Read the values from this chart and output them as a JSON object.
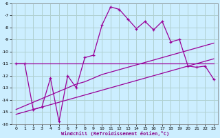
{
  "xlabel": "Windchill (Refroidissement éolien,°C)",
  "background_color": "#cceeff",
  "grid_color": "#b0d0d0",
  "line_color": "#990099",
  "x_data": [
    0,
    1,
    2,
    3,
    4,
    5,
    6,
    7,
    8,
    9,
    10,
    11,
    12,
    13,
    14,
    15,
    16,
    17,
    18,
    19,
    20,
    21,
    22,
    23
  ],
  "y_main": [
    -11.0,
    -11.0,
    -14.8,
    -14.6,
    -12.2,
    -15.8,
    -12.0,
    -13.0,
    -10.5,
    -10.3,
    -7.8,
    -6.3,
    -6.5,
    -7.3,
    -8.1,
    -7.5,
    -8.2,
    -7.5,
    -9.2,
    -9.0,
    -11.2,
    -11.3,
    -11.2,
    -12.3
  ],
  "y_line1": [
    -11.0,
    -11.0,
    -11.0,
    -11.0,
    -11.0,
    -11.0,
    -11.0,
    -11.0,
    -11.0,
    -11.0,
    -11.0,
    -11.0,
    -11.0,
    -11.0,
    -11.0,
    -11.0,
    -11.0,
    -11.0,
    -11.0,
    -11.0,
    -11.0,
    -11.0,
    -11.0,
    -11.0
  ],
  "y_line2": [
    -14.8,
    -14.5,
    -14.2,
    -13.9,
    -13.6,
    -13.3,
    -13.0,
    -12.7,
    -12.5,
    -12.2,
    -11.9,
    -11.7,
    -11.5,
    -11.3,
    -11.1,
    -10.9,
    -10.7,
    -10.5,
    -10.3,
    -10.1,
    -9.9,
    -9.7,
    -9.5,
    -9.3
  ],
  "y_line3": [
    -15.2,
    -15.0,
    -14.8,
    -14.6,
    -14.4,
    -14.2,
    -14.0,
    -13.8,
    -13.6,
    -13.4,
    -13.2,
    -13.0,
    -12.8,
    -12.6,
    -12.4,
    -12.2,
    -12.0,
    -11.8,
    -11.6,
    -11.4,
    -11.2,
    -11.0,
    -10.8,
    -10.6
  ],
  "ylim": [
    -16,
    -6
  ],
  "xlim": [
    -0.5,
    23.5
  ],
  "yticks": [
    -16,
    -15,
    -14,
    -13,
    -12,
    -11,
    -10,
    -9,
    -8,
    -7,
    -6
  ],
  "xticks": [
    0,
    1,
    2,
    3,
    4,
    5,
    6,
    7,
    8,
    9,
    10,
    11,
    12,
    13,
    14,
    15,
    16,
    17,
    18,
    19,
    20,
    21,
    22,
    23
  ]
}
